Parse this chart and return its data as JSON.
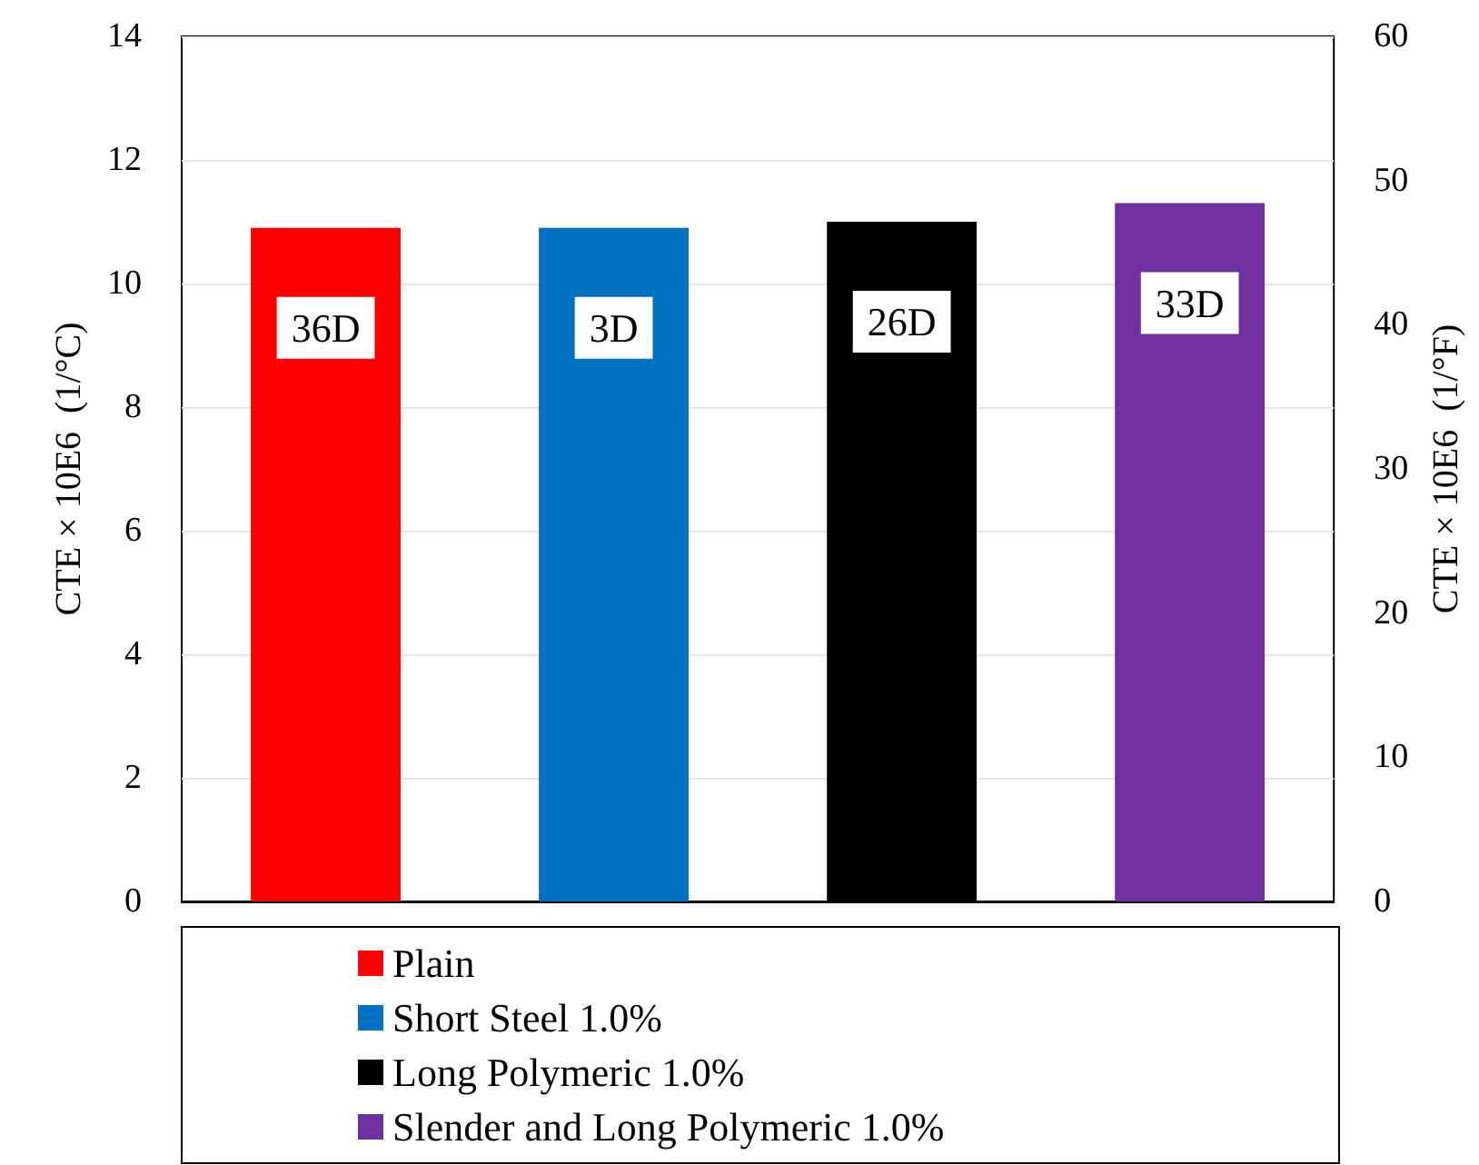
{
  "chart_data": {
    "type": "bar",
    "categories": [
      null,
      null,
      null,
      null
    ],
    "series": [
      {
        "name": "Plain",
        "color": "#ff0000",
        "values": [
          10.9,
          null,
          null,
          null
        ]
      },
      {
        "name": "Short Steel 1.0%",
        "color": "#0070c0",
        "values": [
          null,
          10.9,
          null,
          null
        ]
      },
      {
        "name": "Long Polymeric 1.0%",
        "color": "#000000",
        "values": [
          null,
          null,
          11.0,
          null
        ]
      },
      {
        "name": "Slender and Long Polymeric 1.0%",
        "color": "#7030a0",
        "values": [
          null,
          null,
          null,
          11.3
        ]
      }
    ],
    "ylabel": "CTE × 10E6  (1/°C)",
    "y2label": "CTE × 10E6  (1/°F)",
    "ylim": [
      0,
      14
    ],
    "yticks": [
      0,
      2,
      4,
      6,
      8,
      10,
      12,
      14
    ],
    "y2lim": [
      0,
      60
    ],
    "y2ticks": [
      0,
      10,
      20,
      30,
      40,
      50,
      60
    ],
    "annotations": [
      "36D",
      "3D",
      "26D",
      "33D"
    ],
    "grid": "y",
    "legend": "bottom"
  }
}
